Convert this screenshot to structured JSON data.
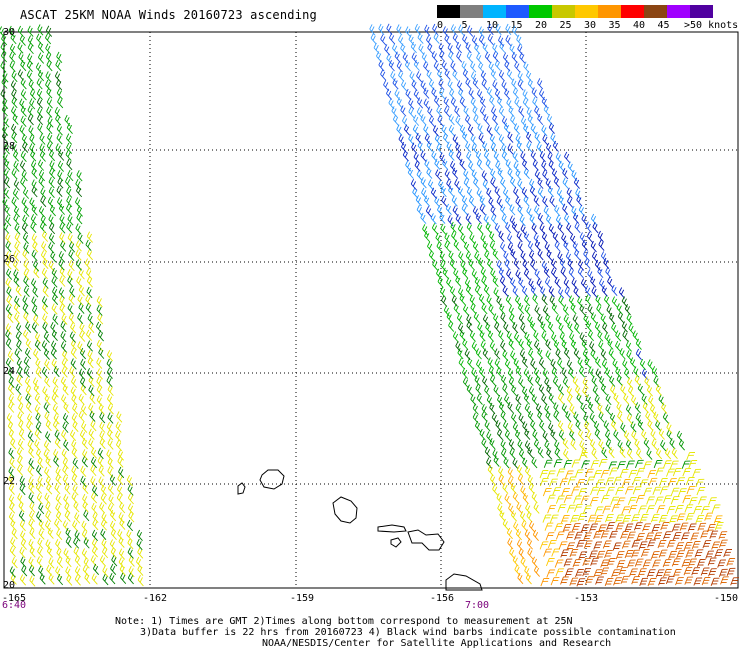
{
  "title": "ASCAT 25KM NOAA Winds 20160723 ascending",
  "legend": {
    "labels": [
      "0",
      "5",
      "10",
      "15",
      "20",
      "25",
      "30",
      "35",
      "40",
      "45",
      ">50"
    ],
    "unit": "knots",
    "colors": [
      "#000000",
      "#7f7f7f",
      "#00b4ff",
      "#1e5aff",
      "#00c800",
      "#c8c800",
      "#ffc800",
      "#ff9600",
      "#ff0000",
      "#8b4513",
      "#a000ff",
      "#5000a0"
    ]
  },
  "axes": {
    "lon_labels": [
      "-165",
      "-162",
      "-159",
      "-156",
      "-153",
      "-150"
    ],
    "lat_labels": [
      "30",
      "28",
      "26",
      "24",
      "22",
      "20"
    ]
  },
  "times": [
    "6:40",
    "7:00"
  ],
  "notes": [
    "Note: 1) Times are GMT 2)Times along bottom correspond to measurement at 25N",
    "3)Data buffer is 22 hrs from 20160723 4) Black wind barbs indicate possible contamination",
    "NOAA/NESDIS/Center for Satellite Applications and Research"
  ]
}
